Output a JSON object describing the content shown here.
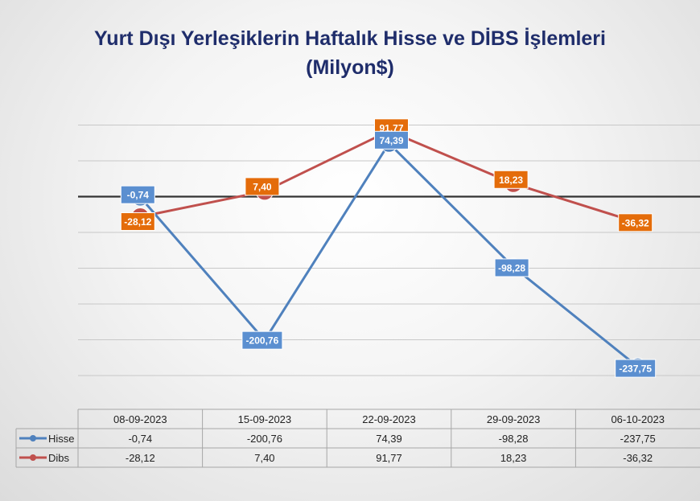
{
  "chart_data": {
    "type": "line",
    "title_line1": "Yurt Dışı Yerleşiklerin Haftalık Hisse ve DİBS İşlemleri",
    "title_line2": "(Milyon$)",
    "categories": [
      "08-09-2023",
      "15-09-2023",
      "22-09-2023",
      "29-09-2023",
      "06-10-2023"
    ],
    "series": [
      {
        "name": "Hisse",
        "color": "#4f81bd",
        "label_bg": "#5b8fd0",
        "values": [
          -0.74,
          -200.76,
          74.39,
          -98.28,
          -237.75
        ],
        "labels": [
          "-0,74",
          "-200,76",
          "74,39",
          "-98,28",
          "-237,75"
        ]
      },
      {
        "name": "Dibs",
        "color": "#c0504d",
        "label_bg": "#e46c0a",
        "values": [
          -28.12,
          7.4,
          91.77,
          18.23,
          -36.32
        ],
        "labels": [
          "-28,12",
          "7,40",
          "91,77",
          "18,23",
          "-36,32"
        ]
      }
    ],
    "ylim": [
      -250,
      150
    ],
    "grid": true,
    "data_table": true
  }
}
